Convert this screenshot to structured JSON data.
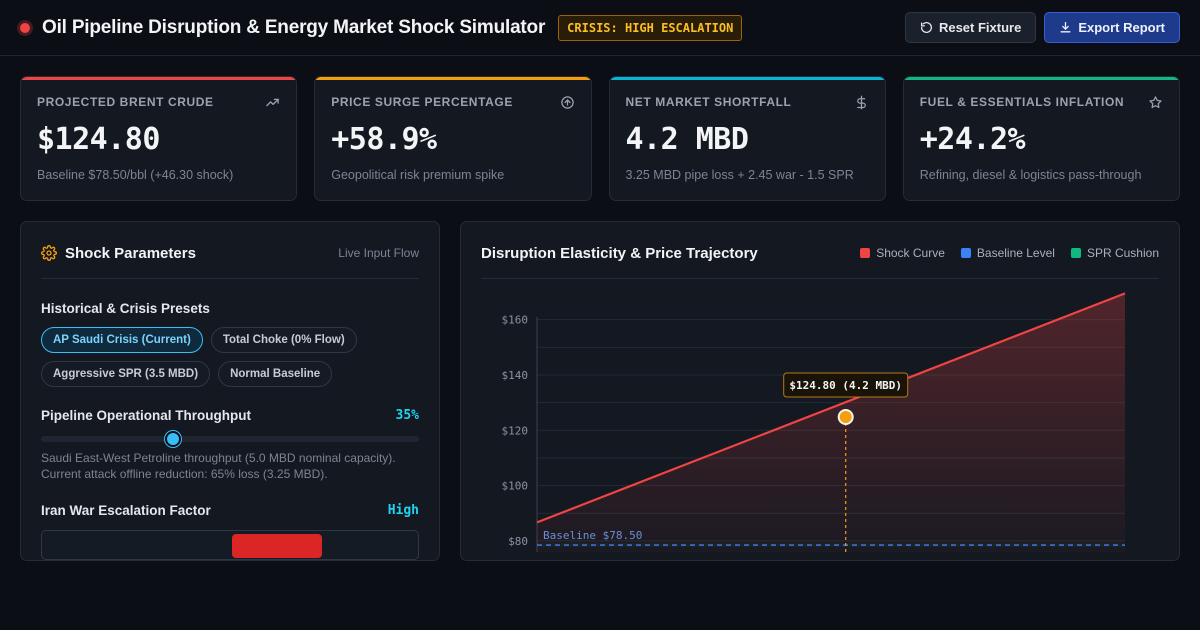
{
  "header": {
    "title": "Oil Pipeline Disruption & Energy Market Shock Simulator",
    "badge": "CRISIS: HIGH ESCALATION",
    "reset_label": "Reset Fixture",
    "export_label": "Export Report"
  },
  "colors": {
    "danger": "#ef4444",
    "warning": "#f59e0b",
    "info": "#06b6d4",
    "success": "#10b981",
    "baseline": "#3b82f6"
  },
  "kpis": [
    {
      "label": "Projected Brent Crude",
      "value": "$124.80",
      "sub": "Baseline $78.50/bbl (+46.30 shock)",
      "icon": "trending-up-icon"
    },
    {
      "label": "Price Surge Percentage",
      "value": "+58.9%",
      "sub": "Geopolitical risk premium spike",
      "icon": "arrow-up-circle-icon"
    },
    {
      "label": "Net Market Shortfall",
      "value": "4.2 MBD",
      "sub": "3.25 MBD pipe loss + 2.45 war - 1.5 SPR",
      "icon": "dollar-icon"
    },
    {
      "label": "Fuel & Essentials Inflation",
      "value": "+24.2%",
      "sub": "Refining, diesel & logistics pass-through",
      "icon": "star-icon"
    }
  ],
  "params": {
    "title": "Shock Parameters",
    "mode": "Live Input Flow",
    "presets_label": "Historical & Crisis Presets",
    "presets": [
      {
        "label": "AP Saudi Crisis (Current)",
        "active": true
      },
      {
        "label": "Total Choke (0% Flow)",
        "active": false
      },
      {
        "label": "Aggressive SPR (3.5 MBD)",
        "active": false
      },
      {
        "label": "Normal Baseline",
        "active": false
      }
    ],
    "throughput_label": "Pipeline Operational Throughput",
    "throughput_value": "35%",
    "throughput_fraction": 0.35,
    "throughput_help_1": "Saudi East-West Petroline throughput (5.0 MBD nominal capacity).",
    "throughput_help_2": "Current attack offline reduction: 65% loss (3.25 MBD).",
    "escalation_label": "Iran War Escalation Factor",
    "escalation_value": "High"
  },
  "chart": {
    "title": "Disruption Elasticity & Price Trajectory",
    "legend": [
      {
        "name": "Shock Curve",
        "color": "#ef4444"
      },
      {
        "name": "Baseline Level",
        "color": "#3b82f6"
      },
      {
        "name": "SPR Cushion",
        "color": "#10b981"
      }
    ],
    "tooltip": "$124.80 (4.2 MBD)",
    "baseline_label": "Baseline $78.50"
  },
  "chart_data": {
    "type": "line",
    "title": "Disruption Elasticity & Price Trajectory",
    "ylabel": "",
    "xlabel": "",
    "ylim": [
      76,
      170
    ],
    "yticks": [
      80,
      100,
      120,
      140,
      160
    ],
    "ytick_labels": [
      "$80",
      "$100",
      "$120",
      "$140",
      "$160"
    ],
    "xlim": [
      0,
      8.0
    ],
    "series": [
      {
        "name": "Shock Curve",
        "x": [
          0,
          8.0
        ],
        "y": [
          86.7,
          169.5
        ]
      },
      {
        "name": "Baseline Level",
        "x": [
          0,
          8.0
        ],
        "y": [
          78.5,
          78.5
        ]
      }
    ],
    "highlight": {
      "x": 4.2,
      "y": 124.8,
      "label": "$124.80 (4.2 MBD)"
    },
    "annotation": "Baseline $78.50",
    "grid": true
  }
}
